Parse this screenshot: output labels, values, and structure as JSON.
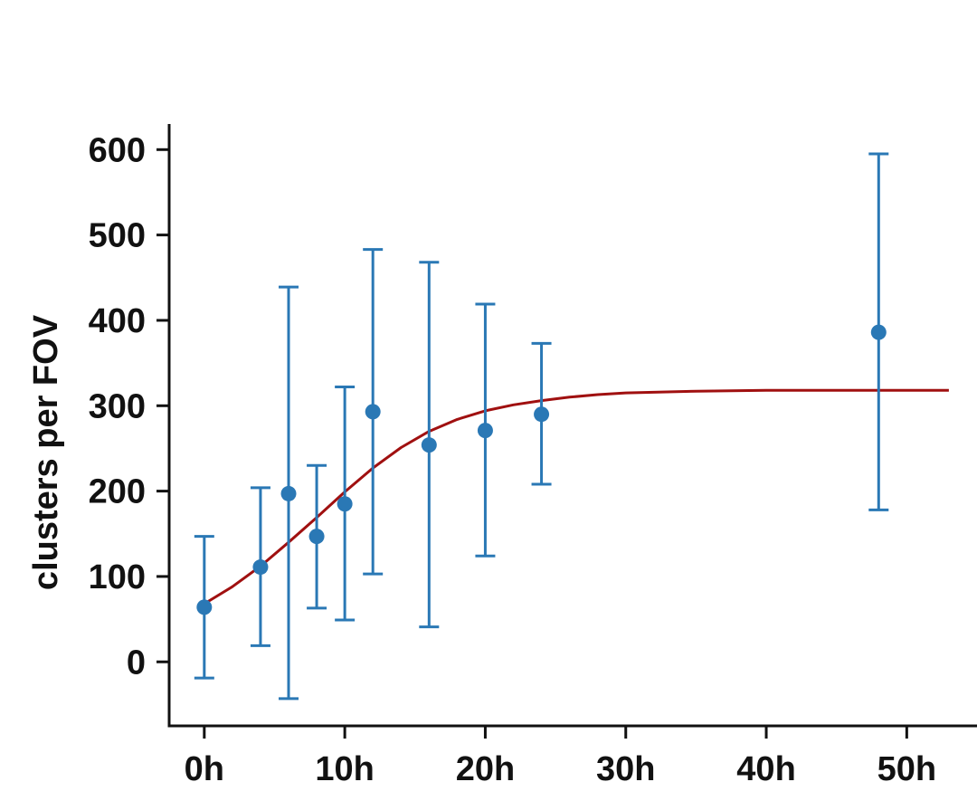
{
  "chart_data": {
    "type": "scatter",
    "title": "",
    "xlabel": "",
    "ylabel": "clusters per FOV",
    "x_unit_suffix": "h",
    "xlim": [
      -2.5,
      55
    ],
    "ylim": [
      -75,
      630
    ],
    "x_ticks": [
      0,
      10,
      20,
      30,
      40,
      50
    ],
    "x_tick_labels": [
      "0h",
      "10h",
      "20h",
      "30h",
      "40h",
      "50h"
    ],
    "y_ticks": [
      0,
      100,
      200,
      300,
      400,
      500,
      600
    ],
    "y_tick_labels": [
      "0",
      "100",
      "200",
      "300",
      "400",
      "500",
      "600"
    ],
    "grid": false,
    "legend": "none",
    "colors": {
      "points": "#2a78b5",
      "fit": "#a01010",
      "axis": "#111111"
    },
    "series": [
      {
        "kind": "scatter-errorbar",
        "points": [
          {
            "x": 0,
            "y": 64,
            "lower": -19,
            "upper": 147
          },
          {
            "x": 4,
            "y": 111,
            "lower": 19,
            "upper": 204
          },
          {
            "x": 6,
            "y": 197,
            "lower": -43,
            "upper": 439
          },
          {
            "x": 8,
            "y": 147,
            "lower": 63,
            "upper": 230
          },
          {
            "x": 10,
            "y": 185,
            "lower": 49,
            "upper": 322
          },
          {
            "x": 12,
            "y": 293,
            "lower": 103,
            "upper": 483
          },
          {
            "x": 16,
            "y": 254,
            "lower": 41,
            "upper": 468
          },
          {
            "x": 20,
            "y": 271,
            "lower": 124,
            "upper": 419
          },
          {
            "x": 24,
            "y": 290,
            "lower": 208,
            "upper": 373
          },
          {
            "x": 48,
            "y": 386,
            "lower": 178,
            "upper": 595
          }
        ]
      },
      {
        "kind": "fit-line",
        "points": [
          [
            0,
            68
          ],
          [
            2,
            88
          ],
          [
            4,
            112
          ],
          [
            6,
            140
          ],
          [
            8,
            169
          ],
          [
            10,
            199
          ],
          [
            12,
            227
          ],
          [
            14,
            251
          ],
          [
            16,
            270
          ],
          [
            18,
            284
          ],
          [
            20,
            294
          ],
          [
            22,
            301
          ],
          [
            24,
            306
          ],
          [
            26,
            310
          ],
          [
            28,
            313
          ],
          [
            30,
            315
          ],
          [
            35,
            317
          ],
          [
            40,
            318
          ],
          [
            45,
            318
          ],
          [
            50,
            318
          ],
          [
            53,
            318
          ]
        ]
      }
    ]
  }
}
